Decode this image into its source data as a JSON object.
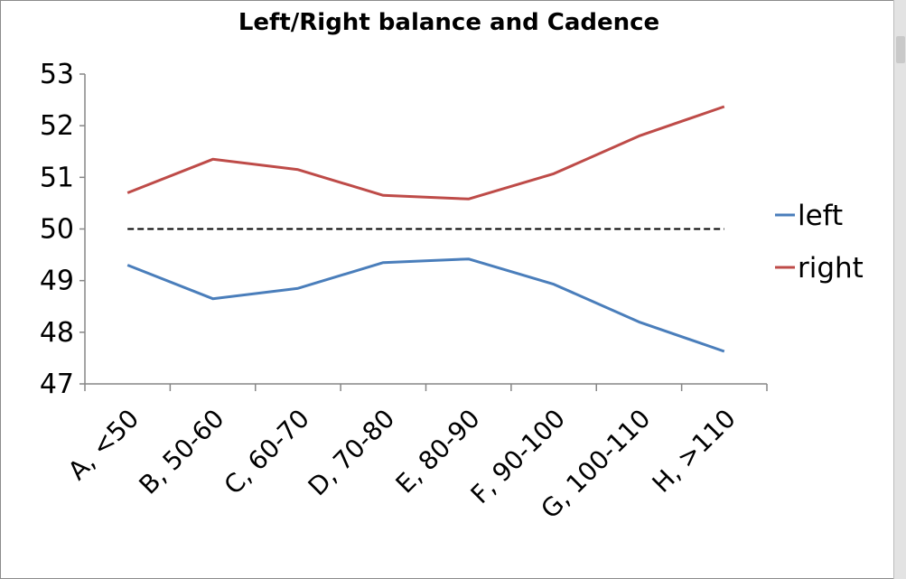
{
  "chart_data": {
    "type": "line",
    "title": "Left/Right balance and Cadence",
    "xlabel": "",
    "ylabel": "",
    "categories": [
      "A, <50",
      "B, 50-60",
      "C, 60-70",
      "D, 70-80",
      "E, 80-90",
      "F, 90-100",
      "G, 100-110",
      "H, >110"
    ],
    "series": [
      {
        "name": "left",
        "color": "#4a7ebb",
        "values": [
          49.3,
          48.65,
          48.85,
          49.35,
          49.42,
          48.93,
          48.2,
          47.63
        ]
      },
      {
        "name": "right",
        "color": "#be4b48",
        "values": [
          50.7,
          51.35,
          51.15,
          50.65,
          50.58,
          51.07,
          51.8,
          52.37
        ]
      }
    ],
    "reference_line": {
      "value": 50,
      "style": "dashed",
      "color": "#000000"
    },
    "ylim": [
      47,
      53
    ],
    "yticks": [
      "47",
      "48",
      "49",
      "50",
      "51",
      "52",
      "53"
    ],
    "grid": false,
    "legend_position": "right"
  }
}
